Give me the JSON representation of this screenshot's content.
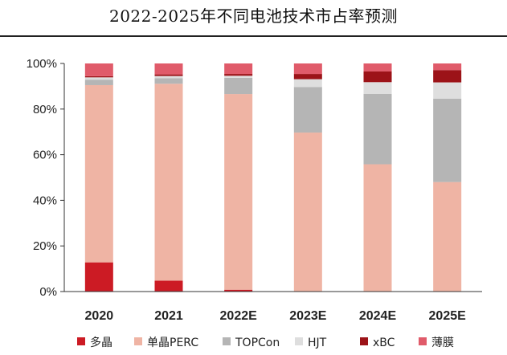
{
  "chart_data": {
    "type": "bar",
    "stacked": true,
    "title": "2022-2025年不同电池技术市占率预测",
    "xlabel": "",
    "ylabel": "",
    "ylim": [
      0,
      100
    ],
    "yticks": [
      "0%",
      "20%",
      "40%",
      "60%",
      "80%",
      "100%"
    ],
    "ytick_values": [
      0,
      20,
      40,
      60,
      80,
      100
    ],
    "categories": [
      "2020",
      "2021",
      "2022E",
      "2023E",
      "2024E",
      "2025E"
    ],
    "legend_position": "bottom",
    "grid": false,
    "series": [
      {
        "name": "多晶",
        "color": "#cc1b24",
        "values": [
          12.8,
          4.8,
          0.8,
          0,
          0,
          0
        ]
      },
      {
        "name": "单晶PERC",
        "color": "#efb4a4",
        "values": [
          77.7,
          86.3,
          85.8,
          69.7,
          55.8,
          48.0
        ]
      },
      {
        "name": "TOPCon",
        "color": "#b5b5b5",
        "values": [
          2.4,
          2.4,
          7.1,
          20.0,
          30.9,
          36.6
        ]
      },
      {
        "name": "HJT",
        "color": "#dedede",
        "values": [
          1.0,
          1.0,
          0.9,
          3.4,
          5.1,
          7.1
        ]
      },
      {
        "name": "xBC",
        "color": "#9c1318",
        "values": [
          0.5,
          0.7,
          0.8,
          2.3,
          4.7,
          5.4
        ]
      },
      {
        "name": "薄膜",
        "color": "#e05b6a",
        "values": [
          5.6,
          4.8,
          4.6,
          4.6,
          3.5,
          2.9
        ]
      }
    ]
  }
}
